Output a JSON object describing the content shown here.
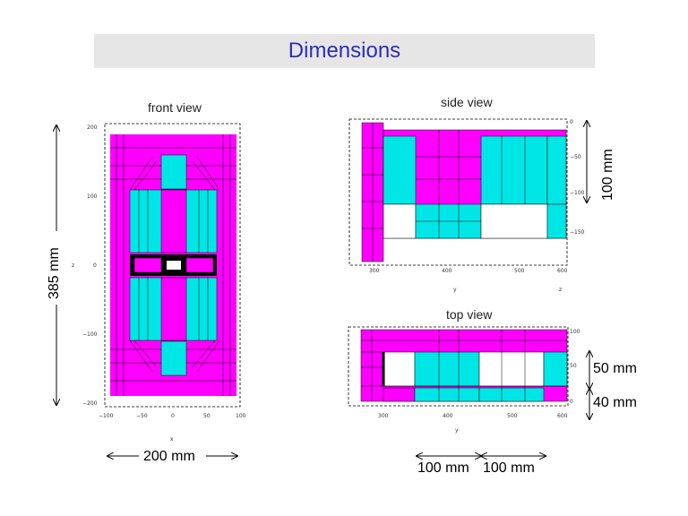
{
  "title": "Dimensions",
  "views": {
    "front": "front view",
    "side": "side view",
    "top": "top view"
  },
  "dimensions": {
    "height": "385 mm",
    "width": "200 mm",
    "side_height": "100 mm",
    "top_upper": "50 mm",
    "top_lower": "40 mm",
    "top_length_a": "100 mm",
    "top_length_b": "100 mm"
  },
  "front_axes": {
    "y_ticks": [
      "200",
      "100",
      "0",
      "−100",
      "−200"
    ],
    "x_ticks": [
      "−100",
      "−50",
      "0",
      "50",
      "100"
    ],
    "x_label": "x",
    "y_label": "z"
  },
  "side_axes": {
    "y_ticks": [
      "0",
      "−50",
      "−100",
      "−150"
    ],
    "x_ticks": [
      "300",
      "400",
      "500",
      "600"
    ],
    "x_label": "y",
    "y_label": "z"
  },
  "top_axes": {
    "y_ticks": [
      "100",
      "50",
      "0"
    ],
    "x_ticks": [
      "300",
      "400",
      "500",
      "600"
    ],
    "x_label": "y"
  },
  "colors": {
    "magenta": "#ff00ff",
    "cyan": "#00e6e6",
    "title_text": "#2e2eb8",
    "title_bg": "#e6e6e6"
  }
}
